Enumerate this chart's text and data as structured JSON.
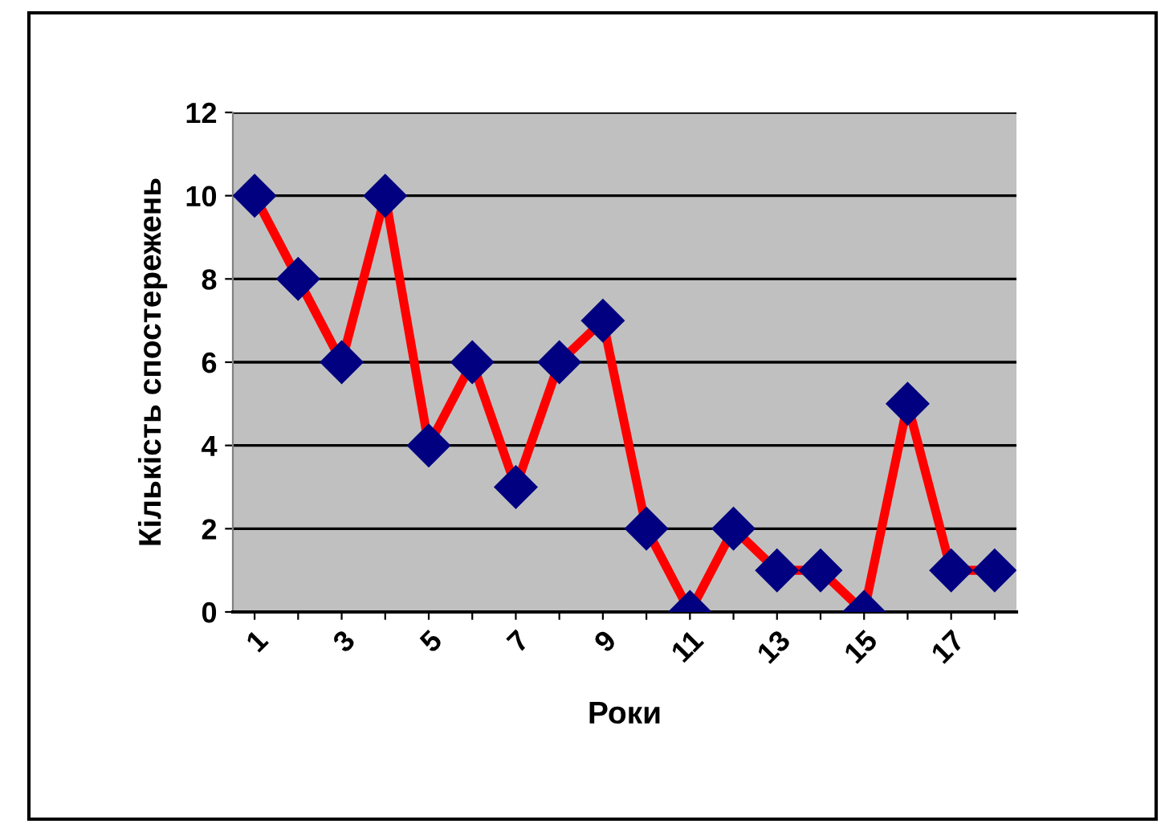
{
  "chart_data": {
    "type": "line",
    "xlabel": "Роки",
    "ylabel": "Кількість спостережень",
    "categories": [
      "1",
      null,
      "3",
      null,
      "5",
      null,
      "7",
      null,
      "9",
      null,
      "11",
      null,
      "13",
      null,
      "15",
      null,
      "17",
      null
    ],
    "series": [
      {
        "color": "#ff0000",
        "values": [
          10,
          8,
          6,
          10,
          4,
          6,
          3,
          6,
          7,
          2,
          0,
          2,
          1,
          1,
          0,
          5,
          1,
          1
        ]
      }
    ],
    "ylim": [
      0,
      12
    ],
    "yticks": [
      0,
      2,
      4,
      6,
      8,
      10,
      12
    ],
    "grid": "y",
    "marker": "diamond",
    "line_style": "solid",
    "legend": false
  }
}
